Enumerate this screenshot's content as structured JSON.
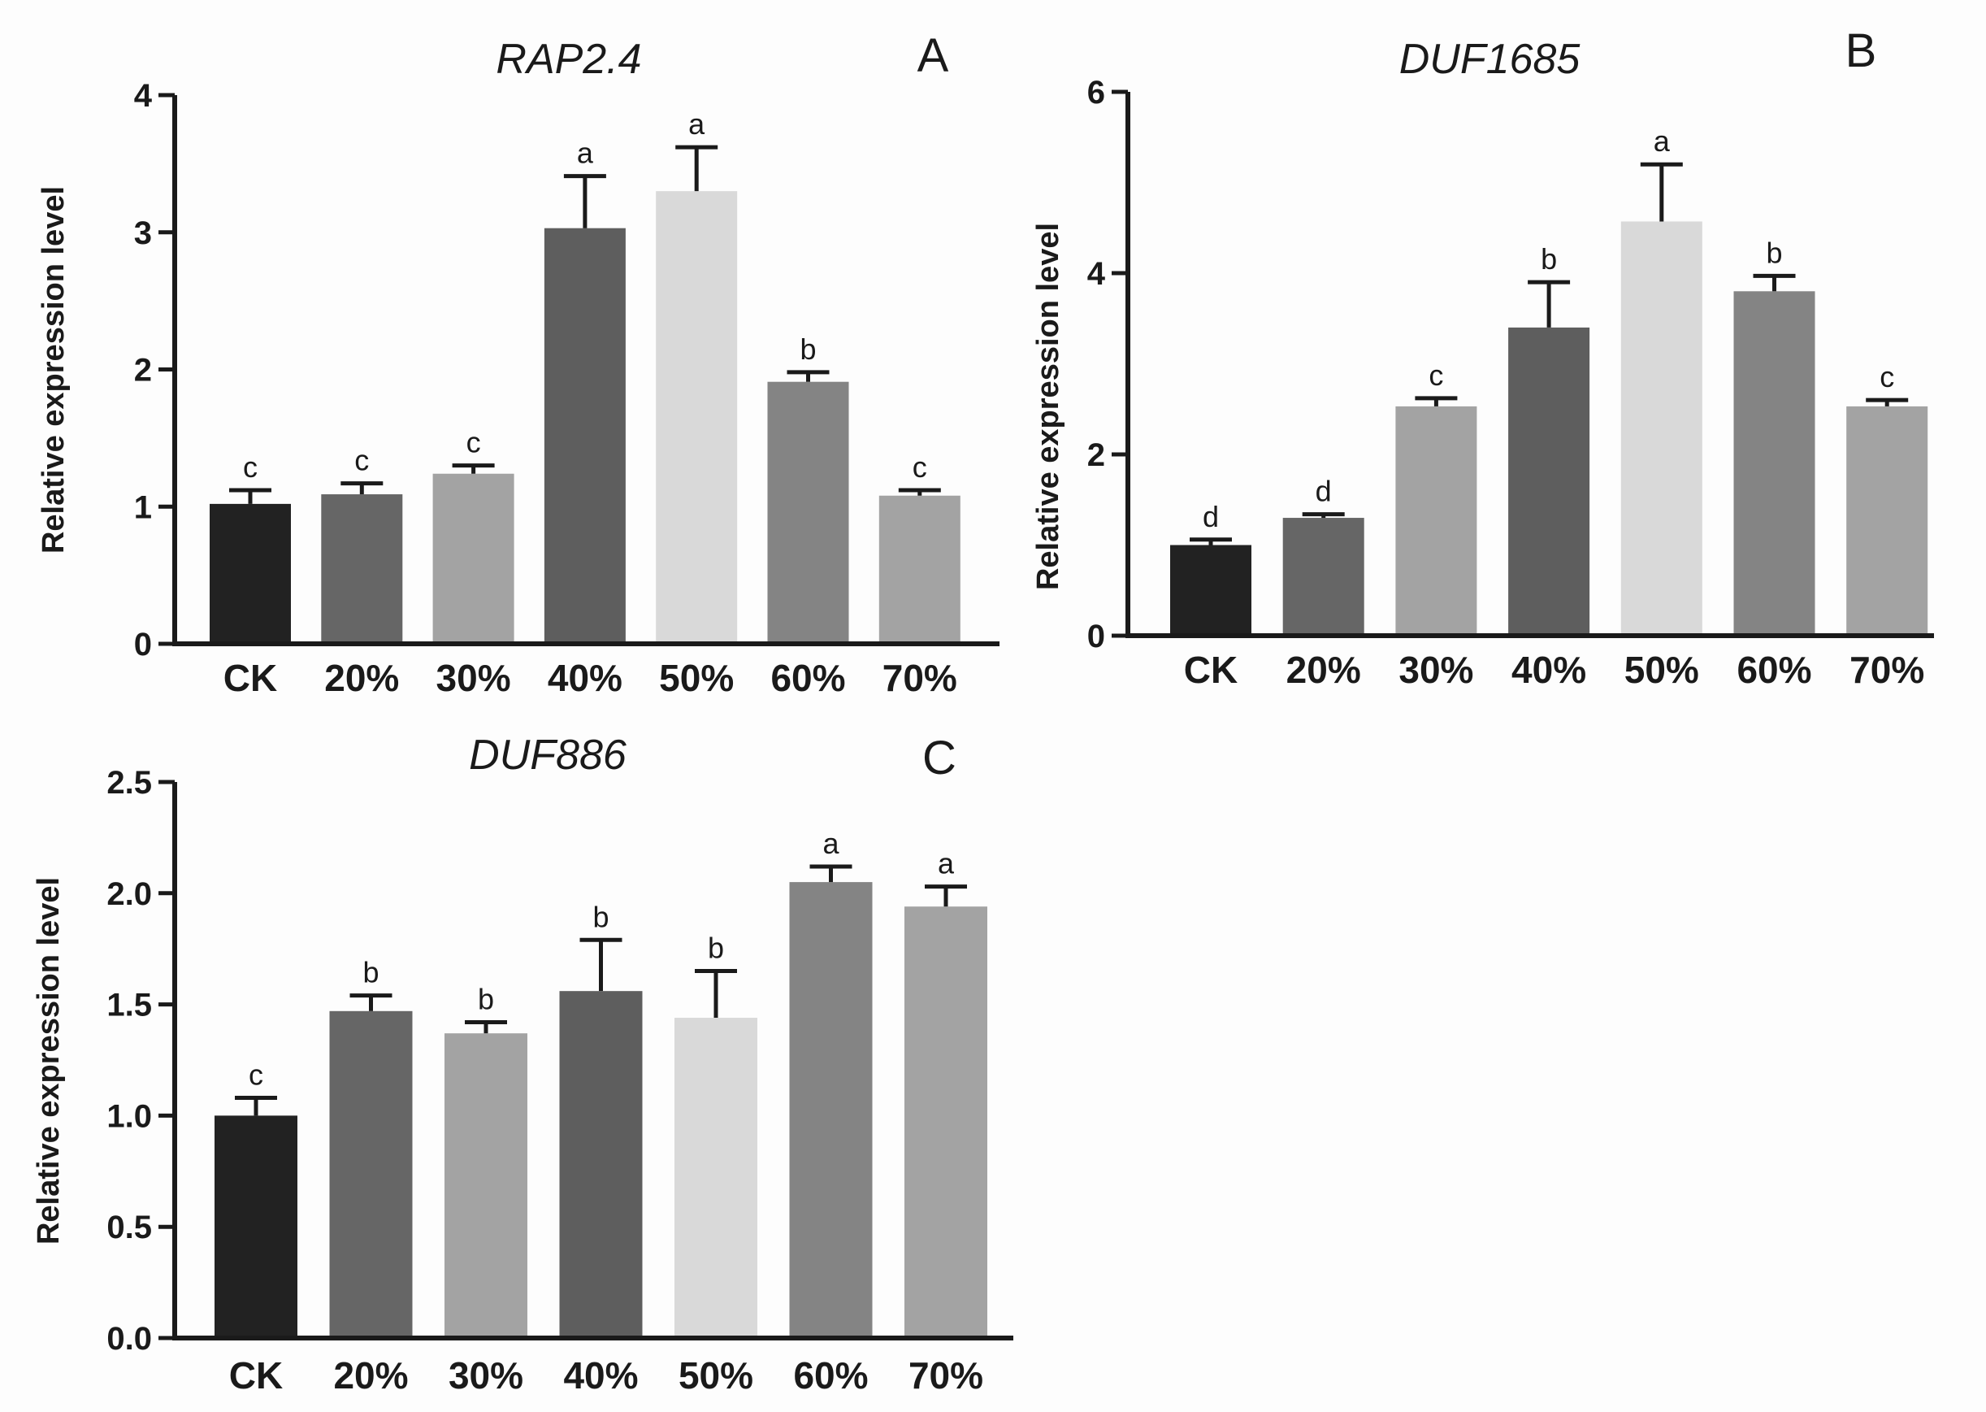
{
  "chart_data": [
    {
      "type": "bar",
      "panel": "A",
      "title": "RAP2.4",
      "ylabel": "Relative expression level",
      "categories": [
        "CK",
        "20%",
        "30%",
        "40%",
        "50%",
        "60%",
        "70%"
      ],
      "values": [
        1.02,
        1.09,
        1.24,
        3.03,
        3.3,
        1.91,
        1.08
      ],
      "errors": [
        0.1,
        0.08,
        0.06,
        0.38,
        0.32,
        0.07,
        0.04
      ],
      "significance": [
        "c",
        "c",
        "c",
        "a",
        "a",
        "b",
        "c"
      ],
      "ylim": [
        0,
        4
      ],
      "yticks": [
        "0",
        "1",
        "2",
        "3",
        "4"
      ],
      "colors": [
        "#222222",
        "#666666",
        "#a3a3a3",
        "#5e5e5e",
        "#d9d9d9",
        "#848484",
        "#a3a3a3"
      ]
    },
    {
      "type": "bar",
      "panel": "B",
      "title": "DUF1685",
      "ylabel": "Relative expression level",
      "categories": [
        "CK",
        "20%",
        "30%",
        "40%",
        "50%",
        "60%",
        "70%"
      ],
      "values": [
        1.0,
        1.3,
        2.53,
        3.4,
        4.57,
        3.8,
        2.53
      ],
      "errors": [
        0.06,
        0.04,
        0.09,
        0.5,
        0.63,
        0.17,
        0.07
      ],
      "significance": [
        "d",
        "d",
        "c",
        "b",
        "a",
        "b",
        "c"
      ],
      "ylim": [
        0,
        6
      ],
      "yticks": [
        "0",
        "2",
        "4",
        "6"
      ],
      "colors": [
        "#222222",
        "#666666",
        "#a3a3a3",
        "#5e5e5e",
        "#d9d9d9",
        "#848484",
        "#a3a3a3"
      ]
    },
    {
      "type": "bar",
      "panel": "C",
      "title": "DUF886",
      "ylabel": "Relative expression level",
      "categories": [
        "CK",
        "20%",
        "30%",
        "40%",
        "50%",
        "60%",
        "70%"
      ],
      "values": [
        1.0,
        1.47,
        1.37,
        1.56,
        1.44,
        2.05,
        1.94
      ],
      "errors": [
        0.08,
        0.07,
        0.05,
        0.23,
        0.21,
        0.07,
        0.09
      ],
      "significance": [
        "c",
        "b",
        "b",
        "b",
        "b",
        "a",
        "a"
      ],
      "ylim": [
        0,
        2.5
      ],
      "yticks": [
        "0.0",
        "0.5",
        "1.0",
        "1.5",
        "2.0",
        "2.5"
      ],
      "colors": [
        "#222222",
        "#666666",
        "#a3a3a3",
        "#5e5e5e",
        "#d9d9d9",
        "#848484",
        "#a3a3a3"
      ]
    }
  ]
}
